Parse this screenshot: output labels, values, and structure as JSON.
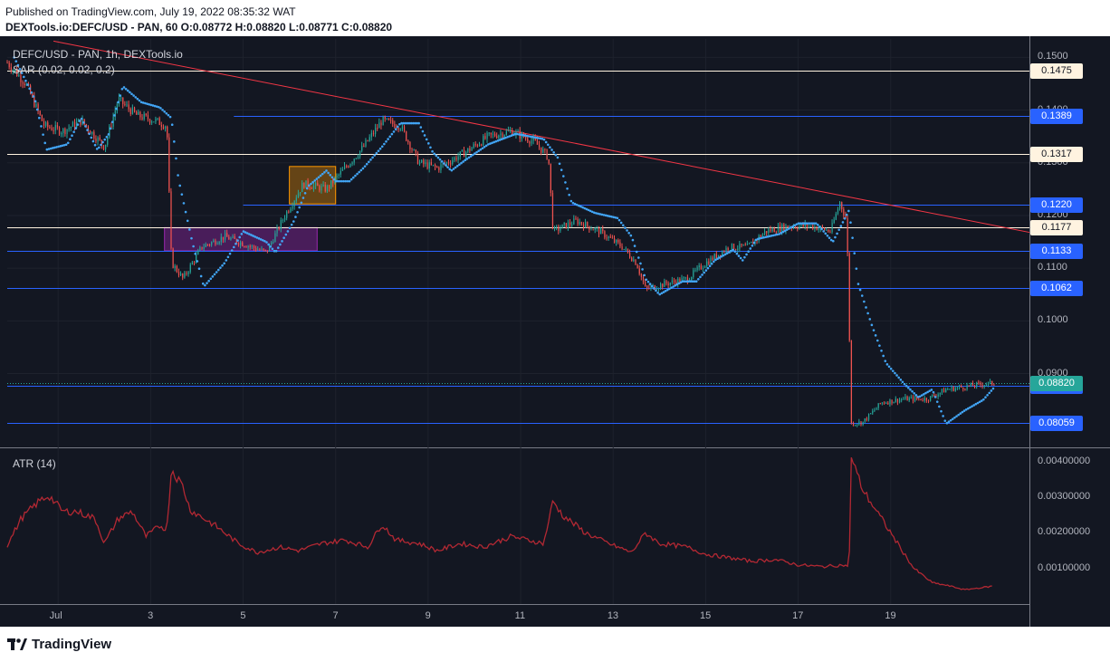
{
  "header": {
    "published": "Published on TradingView.com, July 19, 2022 08:35:32 WAT",
    "symbol_line": "DEXTools.io:DEFC/USD - PAN, 60  O:0.08772  H:0.08820  L:0.08771  C:0.08820"
  },
  "footer": {
    "logo_text": "TradingView"
  },
  "colors": {
    "background": "#131722",
    "price_line": "#2962ff",
    "resistance_line": "#fff3e0",
    "trendline": "#f23645",
    "sar_dot": "#42a5f5",
    "candle_up": "#26a69a",
    "candle_down": "#ef5350",
    "atr_line": "#b22833",
    "current_price": "#26a69a",
    "orange_box": "#ff9800",
    "purple_box": "#9c27b0"
  },
  "chart_data": [
    {
      "type": "candlestick",
      "legend": [
        "DEFC/USD - PAN, 1h, DEXTools.io",
        "SAR (0.02, 0.02, 0.2)"
      ],
      "y_axis_ticks": [
        "0.1500",
        "0.1400",
        "0.1300",
        "0.1200",
        "0.1100",
        "0.1000",
        "0.0900"
      ],
      "ylim": [
        0.076,
        0.1535
      ],
      "x_axis_ticks": [
        "Jul",
        "3",
        "5",
        "7",
        "9",
        "11",
        "13",
        "15",
        "17",
        "19"
      ],
      "xlim_days": [
        29.9,
        52.0
      ],
      "horizontal_levels": [
        {
          "price": 0.1475,
          "label": "0.1475",
          "style": "resistance",
          "start_day": 29.9
        },
        {
          "price": 0.1389,
          "label": "0.1389",
          "style": "support",
          "start_day": 34.8
        },
        {
          "price": 0.1317,
          "label": "0.1317",
          "style": "resistance",
          "start_day": 29.9
        },
        {
          "price": 0.122,
          "label": "0.1220",
          "style": "support",
          "start_day": 35.0
        },
        {
          "price": 0.1177,
          "label": "0.1177",
          "style": "resistance",
          "start_day": 29.9
        },
        {
          "price": 0.1133,
          "label": "0.1133",
          "style": "support",
          "start_day": 29.9
        },
        {
          "price": 0.1062,
          "label": "0.1062",
          "style": "support",
          "start_day": 29.9
        },
        {
          "price": 0.0876,
          "label": "0.08760",
          "style": "support",
          "start_day": 29.9
        },
        {
          "price": 0.08059,
          "label": "0.08059",
          "style": "support",
          "start_day": 29.9
        }
      ],
      "current_price": {
        "price": 0.0882,
        "label": "0.08820"
      },
      "trendline": {
        "start": [
          30.9,
          0.1531
        ],
        "end": [
          52.0,
          0.1168
        ]
      },
      "boxes": [
        {
          "name": "orange-box",
          "x0": 36.0,
          "x1": 37.0,
          "y0": 0.1222,
          "y1": 0.1293
        },
        {
          "name": "purple-box",
          "x0": 33.3,
          "x1": 36.6,
          "y0": 0.1133,
          "y1": 0.1177
        }
      ],
      "close_path": [
        [
          29.9,
          0.149
        ],
        [
          30.3,
          0.145
        ],
        [
          30.7,
          0.137
        ],
        [
          31.1,
          0.136
        ],
        [
          31.5,
          0.138
        ],
        [
          32.0,
          0.133
        ],
        [
          32.3,
          0.142
        ],
        [
          32.7,
          0.139
        ],
        [
          33.1,
          0.138
        ],
        [
          33.35,
          0.137
        ],
        [
          33.45,
          0.111
        ],
        [
          33.7,
          0.108
        ],
        [
          34.1,
          0.114
        ],
        [
          34.6,
          0.116
        ],
        [
          35.2,
          0.114
        ],
        [
          35.5,
          0.113
        ],
        [
          35.9,
          0.12
        ],
        [
          36.3,
          0.126
        ],
        [
          36.8,
          0.125
        ],
        [
          37.2,
          0.129
        ],
        [
          37.6,
          0.133
        ],
        [
          38.0,
          0.138
        ],
        [
          38.4,
          0.137
        ],
        [
          38.8,
          0.13
        ],
        [
          39.2,
          0.129
        ],
        [
          39.8,
          0.132
        ],
        [
          40.3,
          0.135
        ],
        [
          40.8,
          0.136
        ],
        [
          41.3,
          0.134
        ],
        [
          41.6,
          0.131
        ],
        [
          41.7,
          0.117
        ],
        [
          42.2,
          0.119
        ],
        [
          42.7,
          0.117
        ],
        [
          43.2,
          0.114
        ],
        [
          43.5,
          0.111
        ],
        [
          43.7,
          0.106
        ],
        [
          44.1,
          0.107
        ],
        [
          44.6,
          0.108
        ],
        [
          45.0,
          0.111
        ],
        [
          45.5,
          0.114
        ],
        [
          45.9,
          0.114
        ],
        [
          46.3,
          0.117
        ],
        [
          46.8,
          0.118
        ],
        [
          47.3,
          0.118
        ],
        [
          47.7,
          0.117
        ],
        [
          47.9,
          0.1225
        ],
        [
          48.05,
          0.119
        ],
        [
          48.15,
          0.0805
        ],
        [
          48.4,
          0.0808
        ],
        [
          48.8,
          0.0845
        ],
        [
          49.3,
          0.0852
        ],
        [
          49.8,
          0.0852
        ],
        [
          50.2,
          0.087
        ],
        [
          50.6,
          0.0875
        ],
        [
          51.0,
          0.088
        ],
        [
          51.25,
          0.0882
        ]
      ],
      "sar_path": [
        [
          30.05,
          0.15
        ],
        [
          30.5,
          0.142
        ],
        [
          30.75,
          0.1325
        ],
        [
          31.2,
          0.1335
        ],
        [
          31.5,
          0.1385
        ],
        [
          31.85,
          0.1325
        ],
        [
          32.1,
          0.1355
        ],
        [
          32.4,
          0.1445
        ],
        [
          32.8,
          0.1415
        ],
        [
          33.2,
          0.1405
        ],
        [
          33.45,
          0.1385
        ],
        [
          33.6,
          0.127
        ],
        [
          33.9,
          0.115
        ],
        [
          34.15,
          0.1065
        ],
        [
          34.6,
          0.111
        ],
        [
          35.0,
          0.117
        ],
        [
          35.5,
          0.115
        ],
        [
          35.7,
          0.113
        ],
        [
          36.1,
          0.119
        ],
        [
          36.4,
          0.1255
        ],
        [
          36.8,
          0.1285
        ],
        [
          37.0,
          0.1265
        ],
        [
          37.3,
          0.1265
        ],
        [
          37.6,
          0.129
        ],
        [
          38.0,
          0.133
        ],
        [
          38.4,
          0.1375
        ],
        [
          38.8,
          0.1375
        ],
        [
          39.1,
          0.132
        ],
        [
          39.5,
          0.1285
        ],
        [
          39.8,
          0.1305
        ],
        [
          40.3,
          0.1335
        ],
        [
          40.9,
          0.1355
        ],
        [
          41.5,
          0.1345
        ],
        [
          41.8,
          0.131
        ],
        [
          42.1,
          0.1225
        ],
        [
          42.6,
          0.1205
        ],
        [
          43.1,
          0.1195
        ],
        [
          43.4,
          0.116
        ],
        [
          43.7,
          0.108
        ],
        [
          44.0,
          0.105
        ],
        [
          44.5,
          0.1075
        ],
        [
          44.8,
          0.1075
        ],
        [
          45.2,
          0.1115
        ],
        [
          45.6,
          0.1135
        ],
        [
          45.8,
          0.1115
        ],
        [
          46.1,
          0.1155
        ],
        [
          46.6,
          0.1165
        ],
        [
          47.0,
          0.1185
        ],
        [
          47.4,
          0.1185
        ],
        [
          47.75,
          0.115
        ],
        [
          48.1,
          0.121
        ],
        [
          48.3,
          0.107
        ],
        [
          48.6,
          0.099
        ],
        [
          48.9,
          0.092
        ],
        [
          49.3,
          0.088
        ],
        [
          49.6,
          0.0855
        ],
        [
          49.9,
          0.087
        ],
        [
          50.2,
          0.0805
        ],
        [
          50.6,
          0.083
        ],
        [
          51.0,
          0.085
        ],
        [
          51.25,
          0.0875
        ]
      ]
    },
    {
      "type": "line",
      "legend": "ATR (14)",
      "y_axis_ticks": [
        "0.00400000",
        "0.00300000",
        "0.00200000",
        "0.00100000"
      ],
      "ylim": [
        0.0,
        0.00412
      ],
      "series": [
        {
          "values_path": [
            [
              29.9,
              0.00165
            ],
            [
              30.2,
              0.0024
            ],
            [
              30.6,
              0.0029
            ],
            [
              30.8,
              0.00305
            ],
            [
              31.1,
              0.0026
            ],
            [
              31.4,
              0.0026
            ],
            [
              31.8,
              0.0024
            ],
            [
              32.0,
              0.0017
            ],
            [
              32.3,
              0.0024
            ],
            [
              32.6,
              0.0026
            ],
            [
              32.9,
              0.0019
            ],
            [
              33.2,
              0.0022
            ],
            [
              33.35,
              0.0021
            ],
            [
              33.45,
              0.0038
            ],
            [
              33.7,
              0.0033
            ],
            [
              33.85,
              0.00265
            ],
            [
              34.4,
              0.0022
            ],
            [
              34.9,
              0.0017
            ],
            [
              35.3,
              0.00145
            ],
            [
              35.8,
              0.0016
            ],
            [
              36.2,
              0.0015
            ],
            [
              36.7,
              0.0017
            ],
            [
              37.2,
              0.0018
            ],
            [
              37.7,
              0.0016
            ],
            [
              38.0,
              0.00225
            ],
            [
              38.3,
              0.0018
            ],
            [
              38.8,
              0.0017
            ],
            [
              39.2,
              0.0015
            ],
            [
              39.7,
              0.0017
            ],
            [
              40.2,
              0.0016
            ],
            [
              40.8,
              0.0019
            ],
            [
              41.5,
              0.0017
            ],
            [
              41.7,
              0.0029
            ],
            [
              41.9,
              0.0025
            ],
            [
              42.4,
              0.002
            ],
            [
              42.9,
              0.0017
            ],
            [
              43.4,
              0.00145
            ],
            [
              43.7,
              0.002
            ],
            [
              44.0,
              0.0017
            ],
            [
              44.6,
              0.0016
            ],
            [
              45.0,
              0.0014
            ],
            [
              45.5,
              0.0013
            ],
            [
              46.0,
              0.0012
            ],
            [
              46.5,
              0.00125
            ],
            [
              47.0,
              0.0011
            ],
            [
              47.5,
              0.00105
            ],
            [
              48.0,
              0.0011
            ],
            [
              48.1,
              0.001
            ],
            [
              48.15,
              0.0041
            ],
            [
              48.4,
              0.0032
            ],
            [
              48.8,
              0.0024
            ],
            [
              49.2,
              0.0016
            ],
            [
              49.5,
              0.001
            ],
            [
              49.9,
              0.0006
            ],
            [
              50.3,
              0.0005
            ],
            [
              50.6,
              0.0004
            ],
            [
              50.9,
              0.00045
            ],
            [
              51.2,
              0.0005
            ]
          ]
        }
      ]
    }
  ]
}
